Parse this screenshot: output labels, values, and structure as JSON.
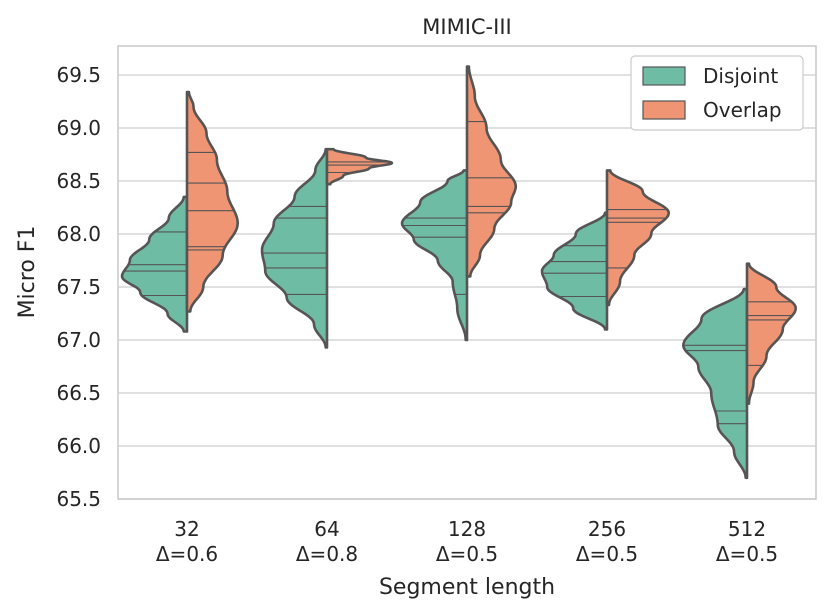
{
  "chart_data": {
    "type": "violin",
    "title": "MIMIC-III",
    "xlabel": "Segment length",
    "ylabel": "Micro F1",
    "ylim": [
      65.5,
      69.8
    ],
    "yticks": [
      "65.5",
      "66.0",
      "66.5",
      "67.0",
      "67.5",
      "68.0",
      "68.5",
      "69.0",
      "69.5"
    ],
    "grid": true,
    "legend_position": "top-right",
    "categories": [
      {
        "name": "32",
        "delta": "Δ=0.6"
      },
      {
        "name": "64",
        "delta": "Δ=0.8"
      },
      {
        "name": "128",
        "delta": "Δ=0.5"
      },
      {
        "name": "256",
        "delta": "Δ=0.5"
      },
      {
        "name": "512",
        "delta": "Δ=0.5"
      }
    ],
    "series": [
      {
        "name": "Disjoint",
        "color": "#6fbca4",
        "side": "left",
        "violins": [
          {
            "profile": [
              [
                67.08,
                0.05
              ],
              [
                67.25,
                0.3
              ],
              [
                67.45,
                0.72
              ],
              [
                67.6,
                1.0
              ],
              [
                67.75,
                0.88
              ],
              [
                67.95,
                0.58
              ],
              [
                68.15,
                0.28
              ],
              [
                68.35,
                0.05
              ]
            ],
            "quartiles": [
              67.42,
              67.65,
              67.71,
              68.02
            ]
          },
          {
            "profile": [
              [
                66.93,
                0.02
              ],
              [
                67.15,
                0.2
              ],
              [
                67.4,
                0.62
              ],
              [
                67.65,
                0.95
              ],
              [
                67.85,
                1.0
              ],
              [
                68.1,
                0.82
              ],
              [
                68.35,
                0.5
              ],
              [
                68.6,
                0.18
              ],
              [
                68.8,
                0.02
              ]
            ],
            "quartiles": [
              67.43,
              67.68,
              67.82,
              68.15,
              68.26
            ]
          },
          {
            "profile": [
              [
                67.0,
                0.02
              ],
              [
                67.3,
                0.15
              ],
              [
                67.55,
                0.22
              ],
              [
                67.75,
                0.45
              ],
              [
                67.95,
                0.82
              ],
              [
                68.1,
                1.0
              ],
              [
                68.3,
                0.72
              ],
              [
                68.5,
                0.3
              ],
              [
                68.6,
                0.05
              ]
            ],
            "quartiles": [
              67.43,
              67.97,
              68.08,
              68.15
            ]
          },
          {
            "profile": [
              [
                67.1,
                0.03
              ],
              [
                67.3,
                0.52
              ],
              [
                67.5,
                0.92
              ],
              [
                67.65,
                1.0
              ],
              [
                67.8,
                0.82
              ],
              [
                68.0,
                0.48
              ],
              [
                68.2,
                0.03
              ]
            ],
            "quartiles": [
              67.41,
              67.63,
              67.74,
              67.89
            ]
          },
          {
            "profile": [
              [
                65.7,
                0.02
              ],
              [
                65.95,
                0.2
              ],
              [
                66.2,
                0.45
              ],
              [
                66.5,
                0.55
              ],
              [
                66.75,
                0.75
              ],
              [
                66.95,
                0.98
              ],
              [
                67.2,
                0.7
              ],
              [
                67.48,
                0.05
              ]
            ],
            "quartiles": [
              66.21,
              66.33,
              66.9,
              66.95
            ]
          }
        ]
      },
      {
        "name": "Overlap",
        "color": "#ef9574",
        "side": "right",
        "violins": [
          {
            "profile": [
              [
                67.27,
                0.05
              ],
              [
                67.5,
                0.25
              ],
              [
                67.8,
                0.55
              ],
              [
                68.1,
                0.78
              ],
              [
                68.4,
                0.62
              ],
              [
                68.7,
                0.46
              ],
              [
                68.95,
                0.3
              ],
              [
                69.2,
                0.1
              ],
              [
                69.34,
                0.03
              ]
            ],
            "quartiles": [
              67.85,
              67.88,
              68.22,
              68.48,
              68.77
            ]
          },
          {
            "profile": [
              [
                68.47,
                0.05
              ],
              [
                68.55,
                0.25
              ],
              [
                68.62,
                0.65
              ],
              [
                68.67,
                1.0
              ],
              [
                68.72,
                0.6
              ],
              [
                68.8,
                0.1
              ]
            ],
            "quartiles": [
              68.58,
              68.65,
              68.68
            ]
          },
          {
            "profile": [
              [
                67.6,
                0.05
              ],
              [
                67.8,
                0.2
              ],
              [
                68.05,
                0.42
              ],
              [
                68.3,
                0.68
              ],
              [
                68.45,
                0.75
              ],
              [
                68.7,
                0.52
              ],
              [
                69.0,
                0.3
              ],
              [
                69.3,
                0.12
              ],
              [
                69.58,
                0.03
              ]
            ],
            "quartiles": [
              68.2,
              68.26,
              68.53,
              69.06
            ]
          },
          {
            "profile": [
              [
                67.33,
                0.03
              ],
              [
                67.55,
                0.2
              ],
              [
                67.8,
                0.42
              ],
              [
                68.0,
                0.68
              ],
              [
                68.2,
                0.95
              ],
              [
                68.4,
                0.55
              ],
              [
                68.6,
                0.05
              ]
            ],
            "quartiles": [
              67.68,
              68.11,
              68.15,
              68.23
            ]
          },
          {
            "profile": [
              [
                66.4,
                0.03
              ],
              [
                66.6,
                0.1
              ],
              [
                66.85,
                0.3
              ],
              [
                67.1,
                0.55
              ],
              [
                67.3,
                0.75
              ],
              [
                67.5,
                0.45
              ],
              [
                67.72,
                0.03
              ]
            ],
            "quartiles": [
              66.76,
              67.19,
              67.23,
              67.36
            ]
          }
        ]
      }
    ]
  }
}
